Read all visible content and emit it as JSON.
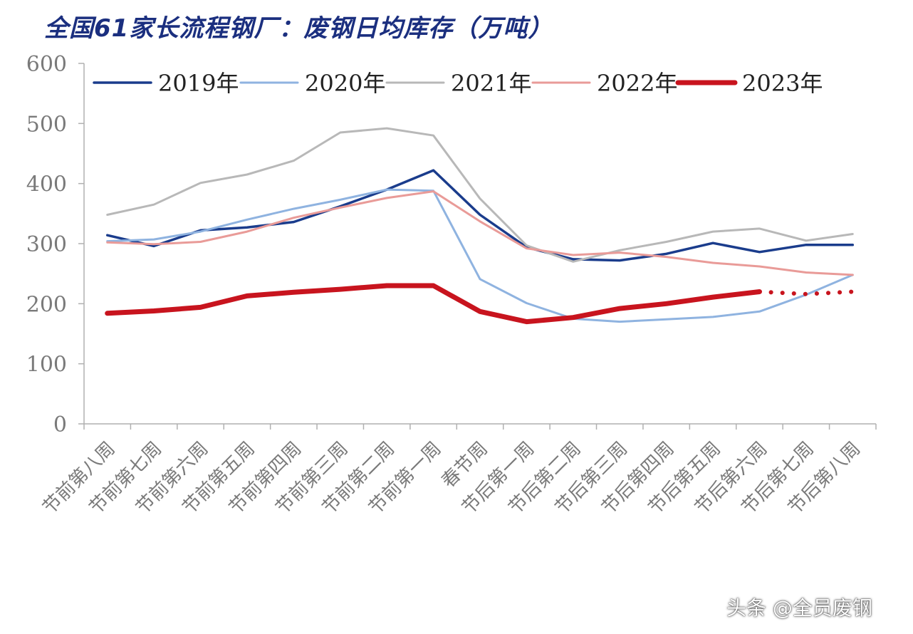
{
  "chart_data": {
    "type": "line",
    "title": "全国61家长流程钢厂：废钢日均库存（万吨）",
    "xlabel": "",
    "ylabel": "",
    "ylim": [
      0,
      600
    ],
    "yticks": [
      0,
      100,
      200,
      300,
      400,
      500,
      600
    ],
    "grid": false,
    "legend_position": "top",
    "categories": [
      "节前第八周",
      "节前第七周",
      "节前第六周",
      "节前第五周",
      "节前第四周",
      "节前第三周",
      "节前第二周",
      "节前第一周",
      "春节周",
      "节后第一周",
      "节后第二周",
      "节后第三周",
      "节后第四周",
      "节后第五周",
      "节后第六周",
      "节后第七周",
      "节后第八周"
    ],
    "x_tick_labels": [
      "节前第八周",
      "节前第七周",
      "节前第六周",
      "节前第五周",
      "节前第四周",
      "节前第三周",
      "节前第二周",
      "节前第一周",
      "春节周",
      "节后第一周",
      "节后第二周",
      "节后第三周",
      "节后第四周",
      "节后第五周",
      "节后第六周",
      "节后第七周",
      "节后第八周"
    ],
    "series": [
      {
        "name": "2019年",
        "color": "#1a3c8c",
        "width": 3.5,
        "values": [
          314,
          296,
          322,
          327,
          336,
          362,
          390,
          422,
          348,
          294,
          274,
          272,
          283,
          301,
          286,
          298,
          298
        ]
      },
      {
        "name": "2020年",
        "color": "#8fb3e0",
        "width": 3,
        "values": [
          304,
          307,
          320,
          340,
          358,
          373,
          390,
          388,
          241,
          201,
          175,
          170,
          174,
          178,
          187,
          215,
          248
        ]
      },
      {
        "name": "2021年",
        "color": "#b8b8b8",
        "width": 3,
        "values": [
          348,
          365,
          401,
          415,
          438,
          485,
          492,
          480,
          375,
          297,
          270,
          289,
          303,
          320,
          325,
          305,
          316
        ]
      },
      {
        "name": "2022年",
        "color": "#e99b98",
        "width": 3,
        "values": [
          302,
          299,
          303,
          320,
          343,
          360,
          376,
          387,
          337,
          292,
          281,
          285,
          278,
          268,
          262,
          252,
          248
        ]
      },
      {
        "name": "2023年",
        "color": "#c8141e",
        "width": 7,
        "values": [
          184,
          188,
          194,
          213,
          219,
          224,
          230,
          230,
          187,
          170,
          177,
          192,
          200,
          211,
          220,
          null,
          null
        ],
        "projection_values": [
          null,
          null,
          null,
          null,
          null,
          null,
          null,
          null,
          null,
          null,
          null,
          null,
          null,
          null,
          220,
          216,
          220
        ]
      }
    ]
  },
  "watermark": "头条 @全员废钢"
}
